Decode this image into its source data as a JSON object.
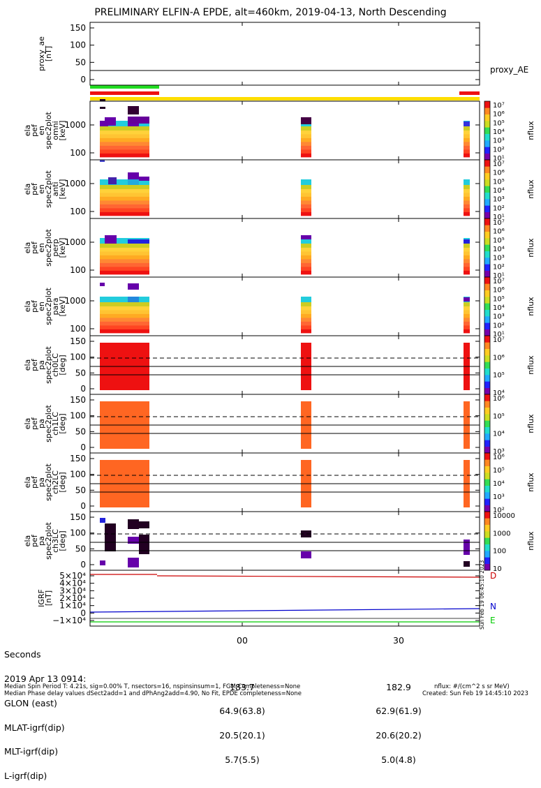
{
  "title": "PRELIMINARY ELFIN-A EPDE, alt=460km, 2019-04-13, North Descending",
  "panels": [
    {
      "id": "proxy_ae",
      "ylabel": [
        "proxy_ae",
        "[nT]"
      ],
      "yticks": [
        "150",
        "100",
        "50",
        "0"
      ],
      "legend": "proxy_AE"
    },
    {
      "id": "omni",
      "ylabel": [
        "ela",
        "pef",
        "en",
        "spec2plot",
        "omni",
        "[keV]"
      ],
      "yticks": [
        "1000",
        "100"
      ],
      "cbar": [
        "10⁷",
        "10⁶",
        "10⁵",
        "10⁴",
        "10³",
        "10²",
        "10¹"
      ],
      "cbar_label": "nflux"
    },
    {
      "id": "anti",
      "ylabel": [
        "ela",
        "pef",
        "en",
        "spec2plot",
        "anti",
        "[keV]"
      ],
      "yticks": [
        "1000",
        "100"
      ],
      "cbar": [
        "10⁷",
        "10⁶",
        "10⁵",
        "10⁴",
        "10³",
        "10²",
        "10¹"
      ],
      "cbar_label": "nflux"
    },
    {
      "id": "perp",
      "ylabel": [
        "ela",
        "pef",
        "en",
        "spec2plot",
        "perp",
        "[keV]"
      ],
      "yticks": [
        "1000",
        "100"
      ],
      "cbar": [
        "10⁷",
        "10⁶",
        "10⁵",
        "10⁴",
        "10³",
        "10²",
        "10¹"
      ],
      "cbar_label": "nflux"
    },
    {
      "id": "para",
      "ylabel": [
        "ela",
        "pef",
        "en",
        "spec2plot",
        "para",
        "[keV]"
      ],
      "yticks": [
        "1000",
        "100"
      ],
      "cbar": [
        "10⁷",
        "10⁶",
        "10⁵",
        "10⁴",
        "10³",
        "10²",
        "10¹"
      ],
      "cbar_label": "nflux"
    },
    {
      "id": "ch0",
      "ylabel": [
        "ela",
        "pef",
        "pa",
        "spec2plot",
        "ch0LC",
        "[deg]"
      ],
      "yticks": [
        "150",
        "100",
        "50",
        "0"
      ],
      "cbar": [
        "10⁷",
        "10⁶",
        "10⁵",
        "10⁴"
      ],
      "cbar_label": "nflux"
    },
    {
      "id": "ch1",
      "ylabel": [
        "ela",
        "pef",
        "pa",
        "spec2plot",
        "ch1LC",
        "[deg]"
      ],
      "yticks": [
        "150",
        "100",
        "50",
        "0"
      ],
      "cbar": [
        "10⁶",
        "10⁵",
        "10⁴",
        "10³"
      ],
      "cbar_label": "nflux"
    },
    {
      "id": "ch2",
      "ylabel": [
        "ela",
        "pef",
        "pa",
        "spec2plot",
        "ch2LC",
        "[deg]"
      ],
      "yticks": [
        "150",
        "100",
        "50",
        "0"
      ],
      "cbar": [
        "10⁶",
        "10⁵",
        "10⁴",
        "10³",
        "10²"
      ],
      "cbar_label": "nflux"
    },
    {
      "id": "ch3",
      "ylabel": [
        "ela",
        "pef",
        "pa",
        "spec2plot",
        "ch3LC",
        "[deg]"
      ],
      "yticks": [
        "150",
        "100",
        "50",
        "0"
      ],
      "cbar": [
        "10000",
        "1000",
        "100",
        "10"
      ],
      "cbar_label": "nflux"
    },
    {
      "id": "igrf",
      "ylabel": [
        "IGRF",
        "[nT]"
      ],
      "yticks": [
        "5×10⁴",
        "4×10⁴",
        "3×10⁴",
        "2×10⁴",
        "1×10⁴",
        "0",
        "−1×10⁴"
      ],
      "legend": [
        "D",
        "N",
        "E"
      ]
    }
  ],
  "xaxis": {
    "ticks": [
      "00",
      "30"
    ]
  },
  "footer": {
    "rows": [
      {
        "label": "Seconds",
        "v1": "",
        "v2": ""
      },
      {
        "label": "2019 Apr 13 0914:",
        "v1": "",
        "v2": ""
      },
      {
        "label": "GLON (east)",
        "v1": "183.7",
        "v2": "182.9"
      },
      {
        "label": "MLAT-igrf(dip)",
        "v1": "64.9(63.8)",
        "v2": "62.9(61.9)"
      },
      {
        "label": "MLT-igrf(dip)",
        "v1": "20.5(20.1)",
        "v2": "20.6(20.2)"
      },
      {
        "label": "L-igrf(dip)",
        "v1": "5.7(5.5)",
        "v2": "5.0(4.8)"
      }
    ],
    "note1": "Median Spin Period T: 4.21s, sig=0.00% T, nsectors=16, nspinsinsum=1, FGM Completeness=None",
    "note2": "Median Phase delay values dSect2add=1 and dPhAng2add=4.90, No Fit, EPDE completeness=None",
    "units": "nflux: #/(cm^2 s sr MeV)",
    "created": "Created: Sun Feb 19 14:45:10 2023",
    "stamp": "Sun Feb 19 06:45:10 2023"
  },
  "colors": {
    "green_bar": "#22dd22",
    "red_bar": "#ee1111",
    "yellow_bar": "#ffdd00",
    "D": "#cc0000",
    "N": "#0000cc",
    "E": "#00cc00"
  }
}
